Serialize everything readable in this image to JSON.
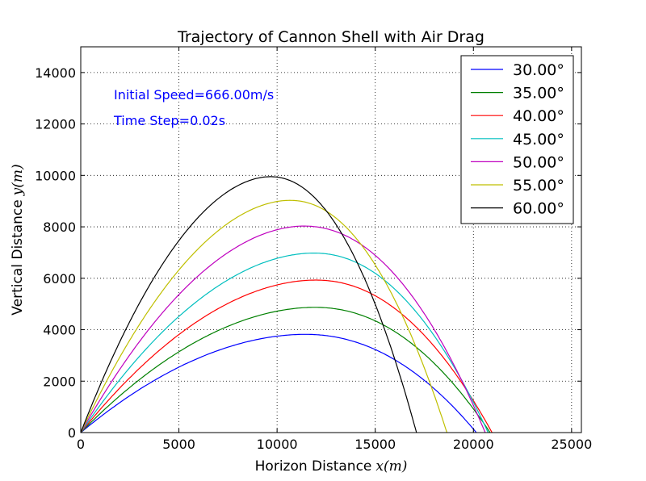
{
  "chart_data": {
    "type": "line",
    "title": "Trajectory of Cannon Shell with Air Drag",
    "xlabel": "Horizon Distance",
    "xlabel_math": "x(m)",
    "ylabel": "Vertical Distance",
    "ylabel_math": "y(m)",
    "xlim": [
      0,
      25500
    ],
    "ylim": [
      0,
      15000
    ],
    "xticks": [
      0,
      5000,
      10000,
      15000,
      20000,
      25000
    ],
    "yticks": [
      0,
      2000,
      4000,
      6000,
      8000,
      10000,
      12000,
      14000
    ],
    "xtick_labels": [
      "0",
      "5000",
      "10000",
      "15000",
      "20000",
      "25000"
    ],
    "ytick_labels": [
      "0",
      "2000",
      "4000",
      "6000",
      "8000",
      "10000",
      "12000",
      "14000"
    ],
    "grid": true,
    "legend_position": "top-right",
    "annotations": [
      "Initial Speed=666.00m/s",
      "Time Step=0.02s"
    ],
    "series": [
      {
        "name": "30.00°",
        "color": "#0000ff",
        "apex_x": 11400,
        "apex_y": 3820,
        "range_x": 20150
      },
      {
        "name": "35.00°",
        "color": "#008000",
        "apex_x": 11900,
        "apex_y": 4870,
        "range_x": 20850
      },
      {
        "name": "40.00°",
        "color": "#ff0000",
        "apex_x": 11950,
        "apex_y": 5930,
        "range_x": 20950
      },
      {
        "name": "45.00°",
        "color": "#00bfbf",
        "apex_x": 11850,
        "apex_y": 6980,
        "range_x": 20750
      },
      {
        "name": "50.00°",
        "color": "#bf00bf",
        "apex_x": 11350,
        "apex_y": 8030,
        "range_x": 20600
      },
      {
        "name": "55.00°",
        "color": "#bfbf00",
        "apex_x": 10650,
        "apex_y": 9030,
        "range_x": 18650
      },
      {
        "name": "60.00°",
        "color": "#000000",
        "apex_x": 9650,
        "apex_y": 9950,
        "range_x": 17100
      }
    ]
  }
}
